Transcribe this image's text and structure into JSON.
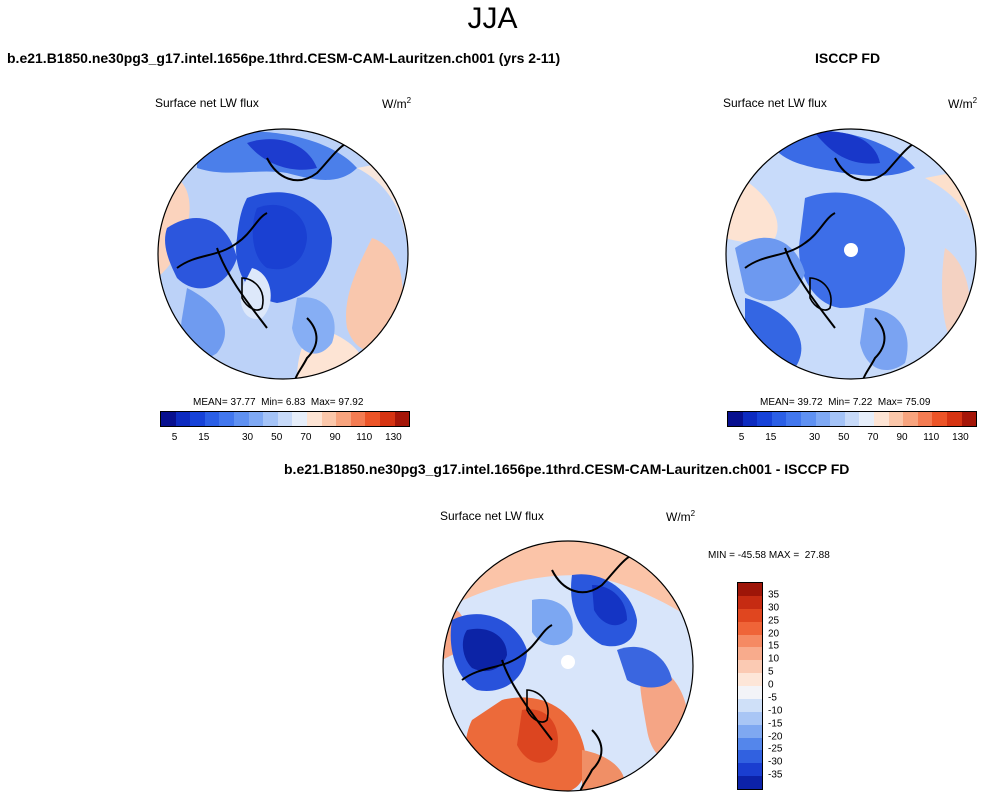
{
  "figure": {
    "title": "JJA",
    "unit_label": "W/m",
    "unit_sup": "2"
  },
  "chart_data": [
    {
      "type": "heatmap",
      "projection": "north polar stereographic",
      "title": "b.e21.B1850.ne30pg3_g17.intel.1656pe.1thrd.CESM-CAM-Lauritzen.ch001 (yrs 2-11)",
      "variable": "Surface net LW flux",
      "stats": {
        "mean_label": "MEAN=",
        "mean": "37.77",
        "min_label": "Min=",
        "min": "6.83",
        "max_label": "Max=",
        "max": "97.92"
      },
      "colorbar": {
        "levels": [
          5,
          10,
          15,
          20,
          25,
          30,
          40,
          50,
          60,
          70,
          80,
          90,
          100,
          110,
          120,
          130
        ],
        "tick_labels": [
          "5",
          "15",
          "30",
          "50",
          "70",
          "90",
          "110",
          "130"
        ],
        "colors": [
          "#08108f",
          "#0d2bc0",
          "#1642d8",
          "#2b5fe6",
          "#4277ee",
          "#5f91f2",
          "#7fa9f4",
          "#a4c3f7",
          "#c7daf9",
          "#e6eefa",
          "#fde4d4",
          "#fbc7aa",
          "#f8a47e",
          "#f47c52",
          "#ec5427",
          "#d63412",
          "#a51608"
        ]
      }
    },
    {
      "type": "heatmap",
      "projection": "north polar stereographic",
      "title": "ISCCP FD",
      "variable": "Surface net LW flux",
      "stats": {
        "mean_label": "MEAN=",
        "mean": "39.72",
        "min_label": "Min=",
        "min": "7.22",
        "max_label": "Max=",
        "max": "75.09"
      },
      "colorbar": {
        "levels": [
          5,
          10,
          15,
          20,
          25,
          30,
          40,
          50,
          60,
          70,
          80,
          90,
          100,
          110,
          120,
          130
        ],
        "tick_labels": [
          "5",
          "15",
          "30",
          "50",
          "70",
          "90",
          "110",
          "130"
        ],
        "colors": [
          "#08108f",
          "#0d2bc0",
          "#1642d8",
          "#2b5fe6",
          "#4277ee",
          "#5f91f2",
          "#7fa9f4",
          "#a4c3f7",
          "#c7daf9",
          "#e6eefa",
          "#fde4d4",
          "#fbc7aa",
          "#f8a47e",
          "#f47c52",
          "#ec5427",
          "#d63412",
          "#a51608"
        ]
      }
    },
    {
      "type": "heatmap",
      "projection": "north polar stereographic",
      "title": "b.e21.B1850.ne30pg3_g17.intel.1656pe.1thrd.CESM-CAM-Lauritzen.ch001 - ISCCP FD",
      "variable": "Surface net LW flux",
      "stats": {
        "min_label": "MIN =",
        "min": "-45.58",
        "max_label": "MAX =",
        "max": "27.88"
      },
      "colorbar": {
        "orientation": "vertical",
        "levels": [
          35,
          30,
          25,
          20,
          15,
          10,
          5,
          0,
          -5,
          -10,
          -15,
          -20,
          -25,
          -30,
          -35
        ],
        "tick_labels": [
          "35",
          "30",
          "25",
          "20",
          "15",
          "10",
          "5",
          "0",
          "-5",
          "-10",
          "-15",
          "-20",
          "-25",
          "-30",
          "-35"
        ],
        "colors": [
          "#9e1508",
          "#c62b12",
          "#e0461f",
          "#ef6438",
          "#f58a63",
          "#f8ab8c",
          "#fbcab3",
          "#fde6d8",
          "#f3f4f8",
          "#cfe0f8",
          "#a9c6f5",
          "#7fa8f1",
          "#5486eb",
          "#3161e0",
          "#1a3ed0",
          "#0c22a8"
        ]
      }
    }
  ]
}
